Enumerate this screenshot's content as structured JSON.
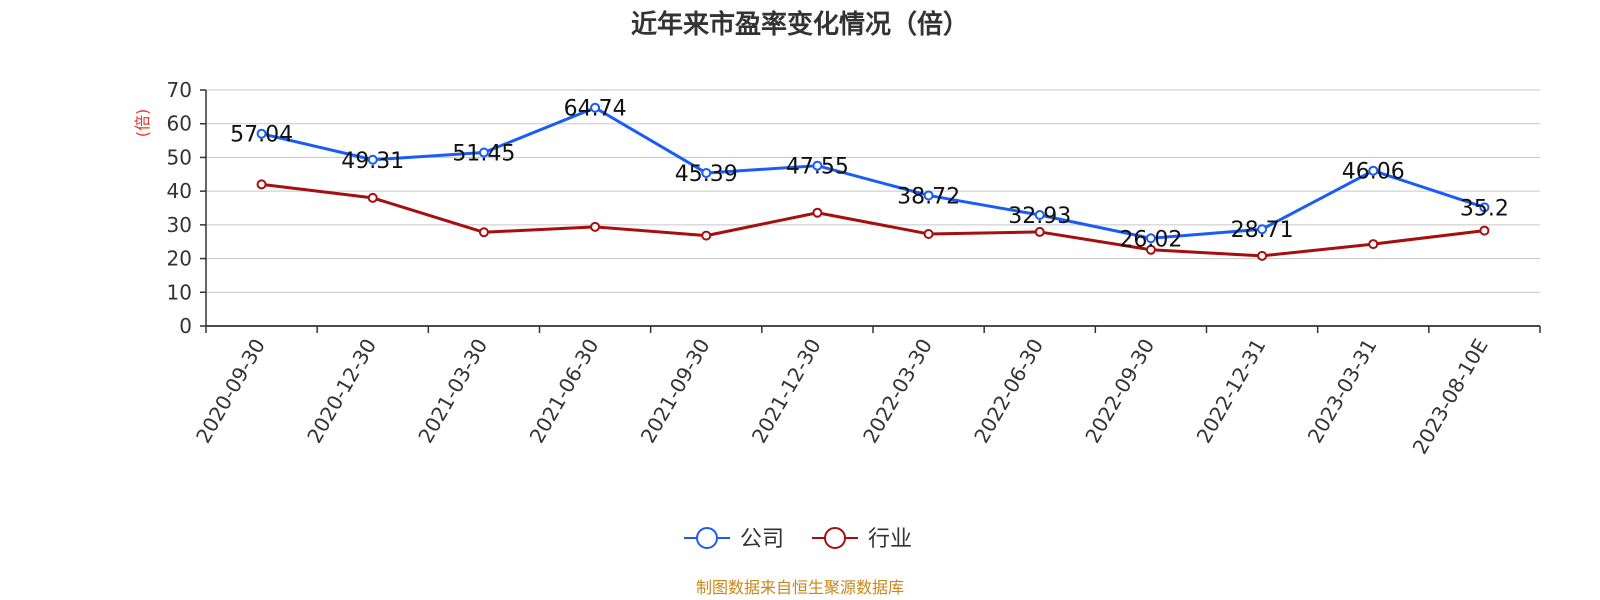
{
  "chart_data": {
    "type": "line",
    "title": "近年来市盈率变化情况（倍）",
    "ylabel": "(倍)",
    "ylim": [
      0,
      70
    ],
    "yticks": [
      0,
      10,
      20,
      30,
      40,
      50,
      60,
      70
    ],
    "grid": true,
    "legend_position": "bottom",
    "categories": [
      "2020-09-30",
      "2020-12-30",
      "2021-03-30",
      "2021-06-30",
      "2021-09-30",
      "2021-12-30",
      "2022-03-30",
      "2022-06-30",
      "2022-09-30",
      "2022-12-31",
      "2023-03-31",
      "2023-08-10E"
    ],
    "series": [
      {
        "name": "公司",
        "color": "#1a5cf5",
        "values": [
          57.04,
          49.31,
          51.45,
          64.74,
          45.39,
          47.55,
          38.72,
          32.93,
          26.02,
          28.71,
          46.06,
          35.2
        ],
        "labels": [
          "57.04",
          "49.31",
          "51.45",
          "64.74",
          "45.39",
          "47.55",
          "38.72",
          "32.93",
          "26.02",
          "28.71",
          "46.06",
          "35.2"
        ]
      },
      {
        "name": "行业",
        "color": "#a50f0f",
        "values": [
          42.0,
          38.0,
          27.8,
          29.4,
          26.8,
          33.6,
          27.3,
          27.9,
          22.6,
          20.8,
          24.3,
          28.3
        ]
      }
    ]
  },
  "source": "制图数据来自恒生聚源数据库",
  "colors": {
    "ylabel": "#e8352a",
    "source": "#c8871a",
    "grid": "#c8c8c8",
    "axis": "#333333"
  }
}
